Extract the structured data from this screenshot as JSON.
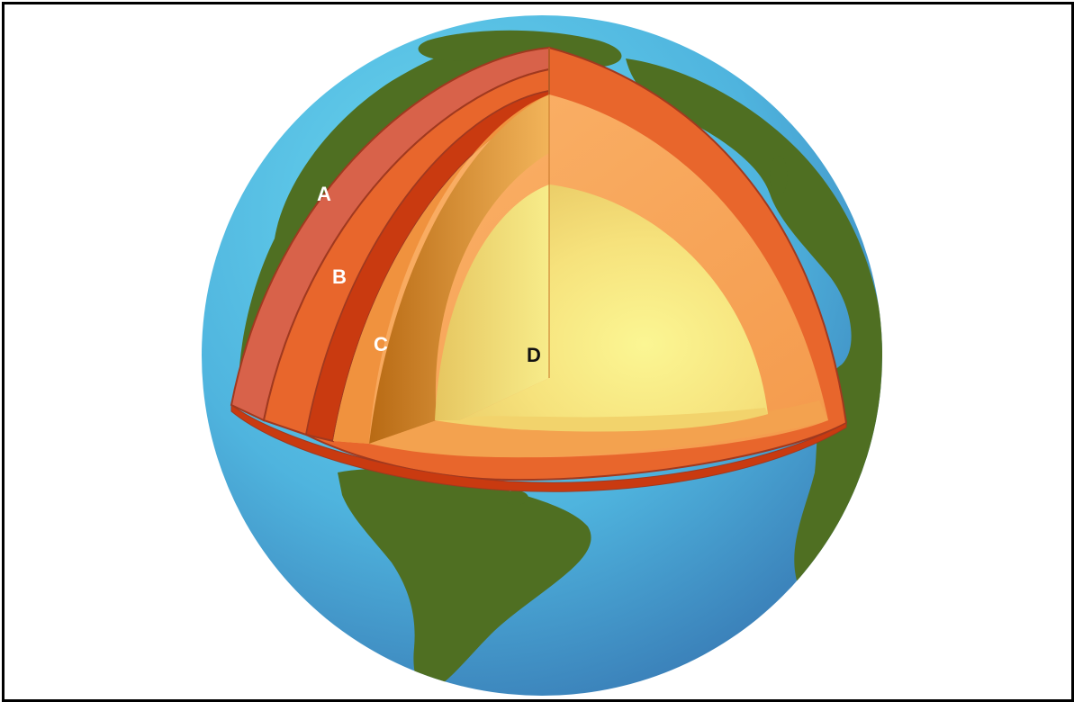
{
  "diagram": {
    "labels": {
      "a": "A",
      "b": "B",
      "c": "C",
      "d": "D"
    },
    "colors": {
      "ocean_light": "#5fd0ea",
      "ocean_dark": "#3f8fc2",
      "land": "#4f6f22",
      "crust": "#d8624a",
      "upper_mantle": "#e8662c",
      "lower_mantle": "#c93a10",
      "outer_core": "#f7a657",
      "inner_core": "#f7ee86",
      "label_light": "#ffffff",
      "label_dark": "#111111"
    }
  }
}
